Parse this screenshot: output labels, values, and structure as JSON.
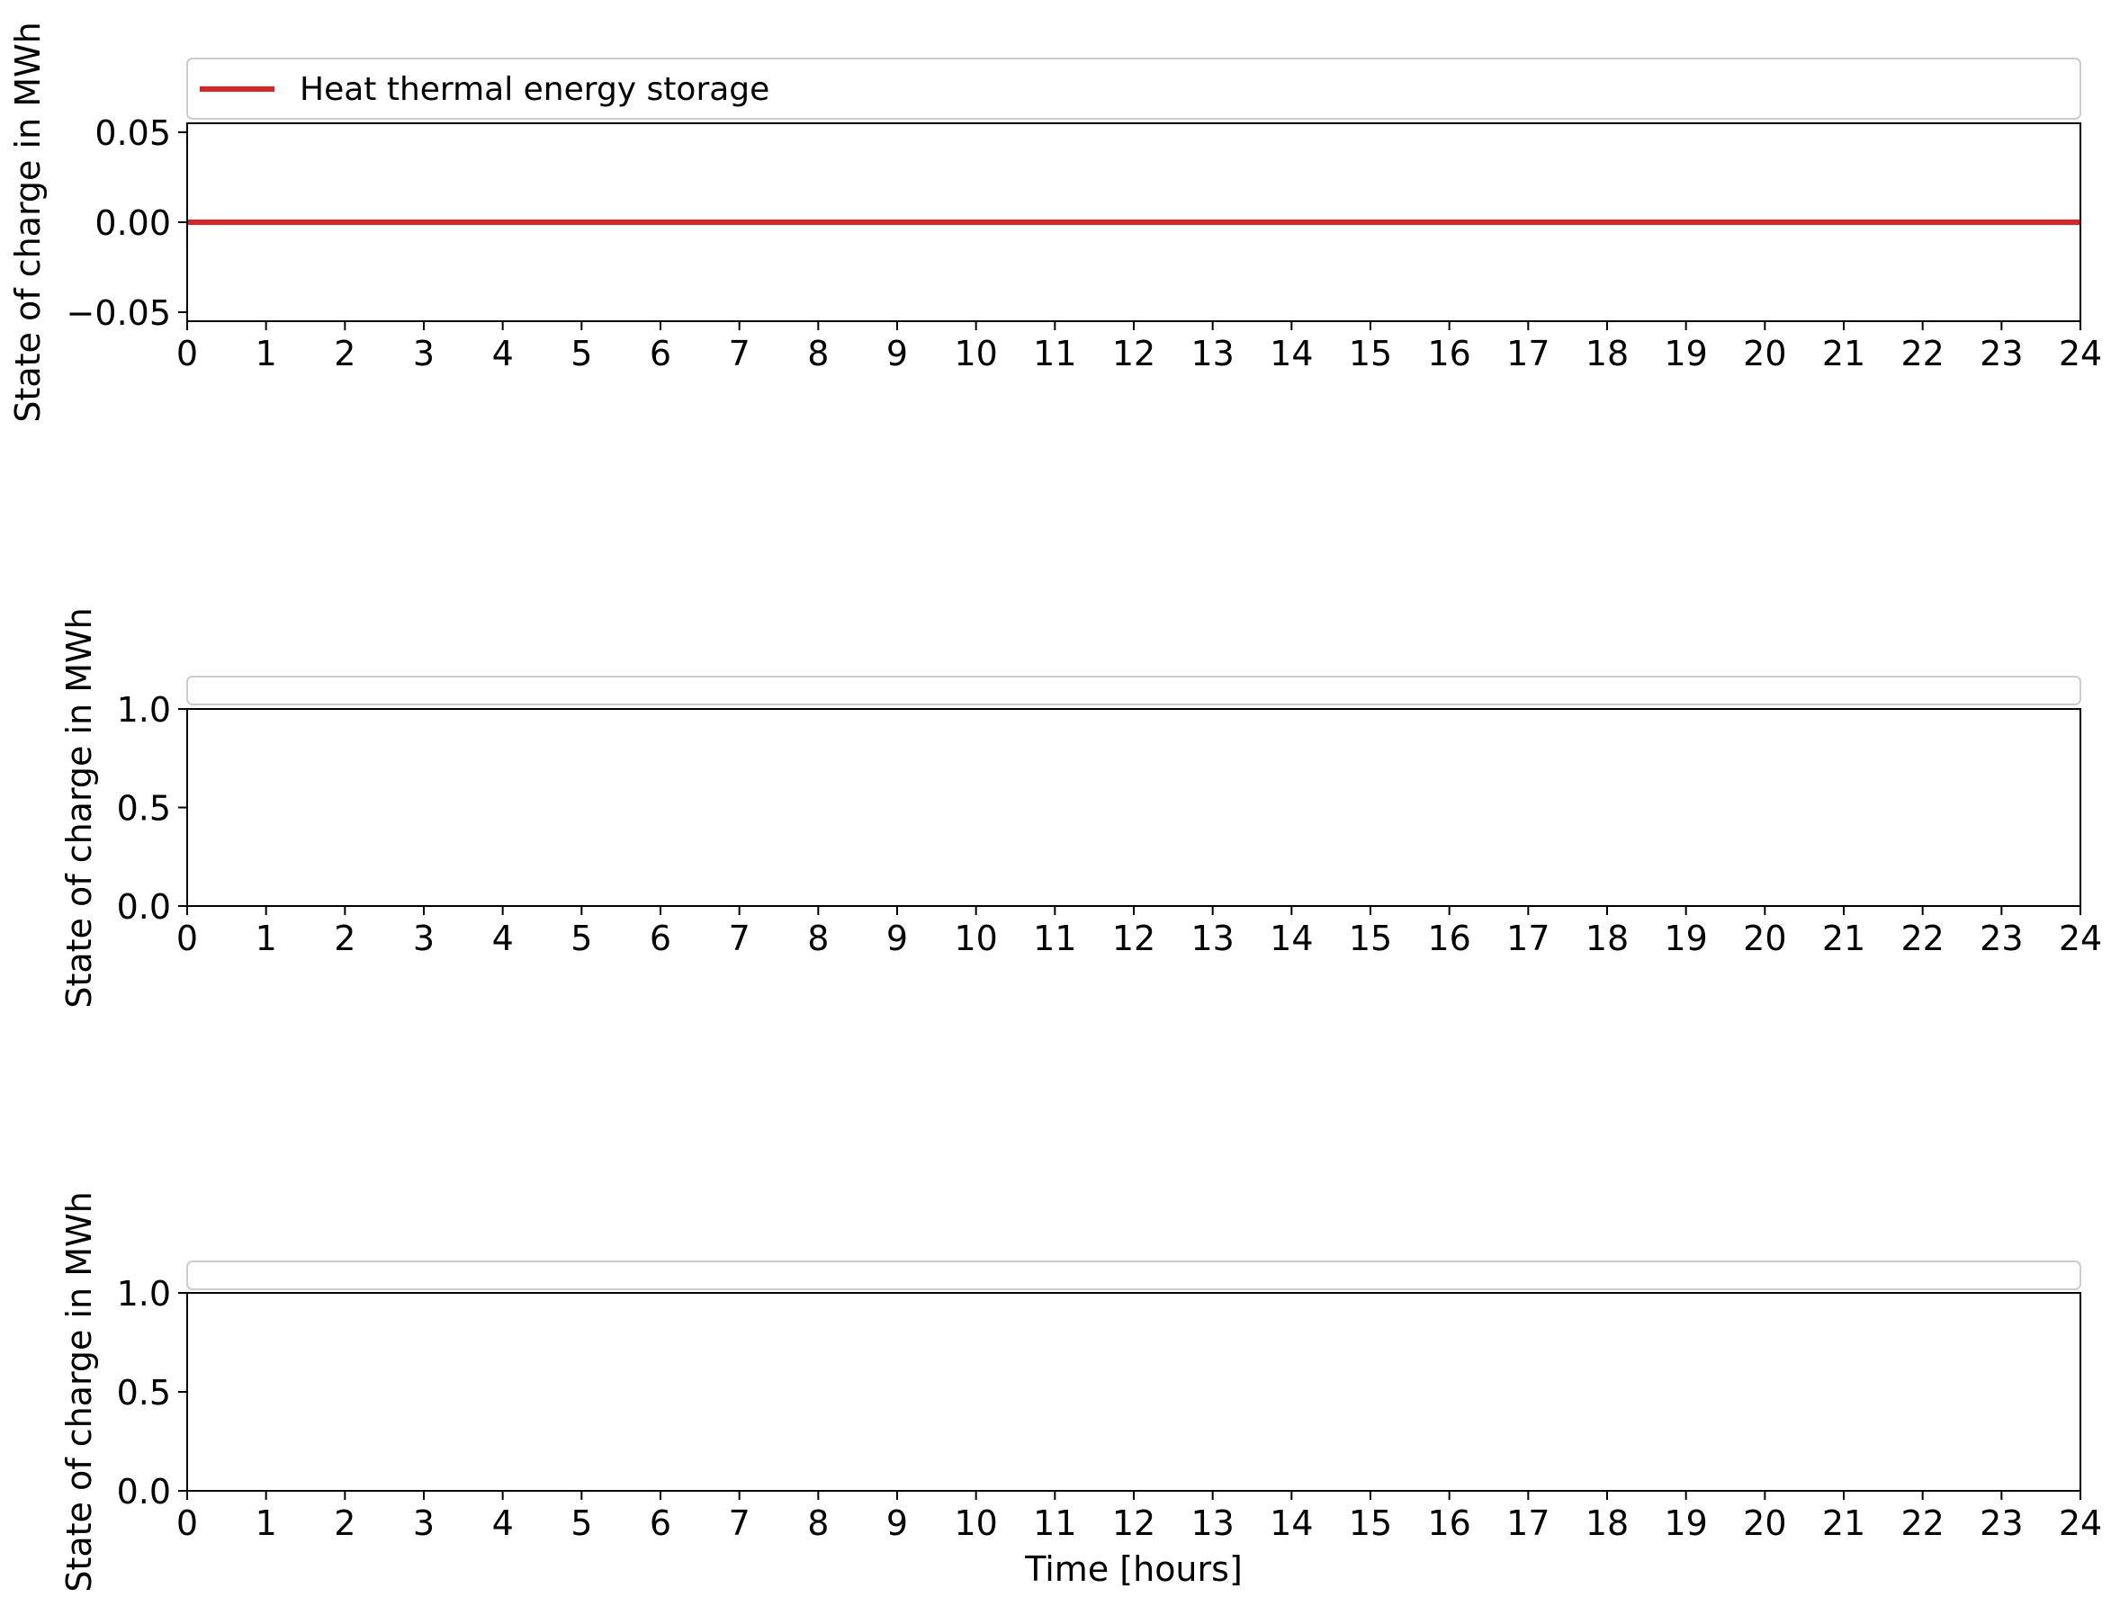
{
  "chart_data": [
    {
      "type": "line",
      "title": "",
      "xlabel": "",
      "ylabel": "State of charge in MWh",
      "xlim": [
        0,
        24
      ],
      "ylim": [
        -0.055,
        0.055
      ],
      "xticks": [
        0,
        1,
        2,
        3,
        4,
        5,
        6,
        7,
        8,
        9,
        10,
        11,
        12,
        13,
        14,
        15,
        16,
        17,
        18,
        19,
        20,
        21,
        22,
        23,
        24
      ],
      "yticks": [
        -0.05,
        0.0,
        0.05
      ],
      "ytick_labels": [
        "−0.05",
        "0.00",
        "0.05"
      ],
      "grid": false,
      "legend": "top (above axes, full width)",
      "series": [
        {
          "name": "Heat thermal energy storage",
          "color": "#d62728",
          "x": [
            0,
            1,
            2,
            3,
            4,
            5,
            6,
            7,
            8,
            9,
            10,
            11,
            12,
            13,
            14,
            15,
            16,
            17,
            18,
            19,
            20,
            21,
            22,
            23,
            24
          ],
          "y": [
            0,
            0,
            0,
            0,
            0,
            0,
            0,
            0,
            0,
            0,
            0,
            0,
            0,
            0,
            0,
            0,
            0,
            0,
            0,
            0,
            0,
            0,
            0,
            0,
            0
          ]
        }
      ]
    },
    {
      "type": "line",
      "title": "",
      "xlabel": "",
      "ylabel": "State of charge in MWh",
      "xlim": [
        0,
        24
      ],
      "ylim": [
        0,
        1
      ],
      "xticks": [
        0,
        1,
        2,
        3,
        4,
        5,
        6,
        7,
        8,
        9,
        10,
        11,
        12,
        13,
        14,
        15,
        16,
        17,
        18,
        19,
        20,
        21,
        22,
        23,
        24
      ],
      "yticks": [
        0,
        0.5,
        1
      ],
      "ytick_labels": [
        "0.0",
        "0.5",
        "1.0"
      ],
      "grid": false,
      "legend": "top (above axes, empty)",
      "series": []
    },
    {
      "type": "line",
      "title": "",
      "xlabel": "Time [hours]",
      "ylabel": "State of charge in MWh",
      "xlim": [
        0,
        24
      ],
      "ylim": [
        0,
        1
      ],
      "xticks": [
        0,
        1,
        2,
        3,
        4,
        5,
        6,
        7,
        8,
        9,
        10,
        11,
        12,
        13,
        14,
        15,
        16,
        17,
        18,
        19,
        20,
        21,
        22,
        23,
        24
      ],
      "yticks": [
        0,
        0.5,
        1
      ],
      "ytick_labels": [
        "0.0",
        "0.5",
        "1.0"
      ],
      "grid": false,
      "legend": "top (above axes, empty)",
      "series": []
    }
  ]
}
